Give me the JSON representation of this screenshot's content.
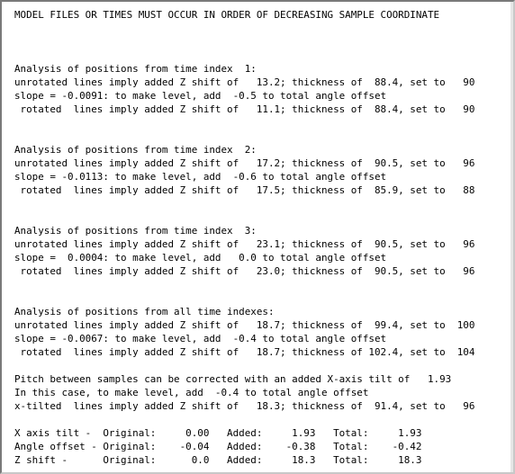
{
  "output_lines": [
    "MODEL FILES OR TIMES MUST OCCUR IN ORDER OF DECREASING SAMPLE COORDINATE",
    "",
    "",
    "",
    "Analysis of positions from time index  1:",
    "unrotated lines imply added Z shift of   13.2; thickness of  88.4, set to   90",
    "slope = -0.0091: to make level, add  -0.5 to total angle offset",
    " rotated  lines imply added Z shift of   11.1; thickness of  88.4, set to   90",
    "",
    "",
    "Analysis of positions from time index  2:",
    "unrotated lines imply added Z shift of   17.2; thickness of  90.5, set to   96",
    "slope = -0.0113: to make level, add  -0.6 to total angle offset",
    " rotated  lines imply added Z shift of   17.5; thickness of  85.9, set to   88",
    "",
    "",
    "Analysis of positions from time index  3:",
    "unrotated lines imply added Z shift of   23.1; thickness of  90.5, set to   96",
    "slope =  0.0004: to make level, add   0.0 to total angle offset",
    " rotated  lines imply added Z shift of   23.0; thickness of  90.5, set to   96",
    "",
    "",
    "Analysis of positions from all time indexes:",
    "unrotated lines imply added Z shift of   18.7; thickness of  99.4, set to  100",
    "slope = -0.0067: to make level, add  -0.4 to total angle offset",
    " rotated  lines imply added Z shift of   18.7; thickness of 102.4, set to  104",
    "",
    "Pitch between samples can be corrected with an added X-axis tilt of   1.93",
    "In this case, to make level, add  -0.4 to total angle offset",
    "x-tilted  lines imply added Z shift of   18.3; thickness of  91.4, set to   96",
    "",
    "X axis tilt -  Original:     0.00   Added:     1.93   Total:     1.93",
    "Angle offset - Original:    -0.04   Added:    -0.38   Total:    -0.42",
    "Z shift -      Original:      0.0   Added:     18.3   Total:     18.3"
  ]
}
